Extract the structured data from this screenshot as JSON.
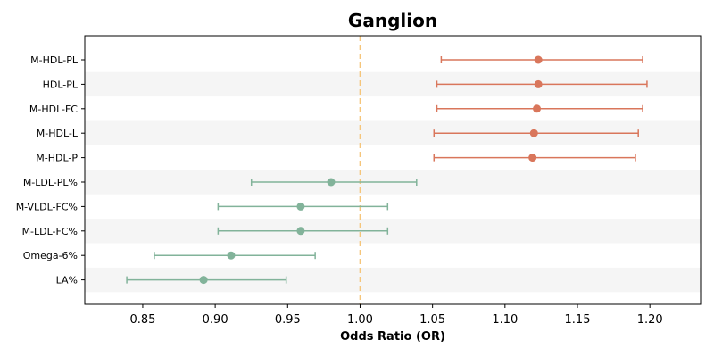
{
  "chart_data": {
    "type": "forest",
    "title": "Ganglion",
    "xlabel": "Odds Ratio (OR)",
    "xlim": [
      0.81,
      1.235
    ],
    "xticks": [
      0.85,
      0.9,
      0.95,
      1.0,
      1.05,
      1.1,
      1.15,
      1.2
    ],
    "xtick_labels": [
      "0.85",
      "0.90",
      "0.95",
      "1.00",
      "1.05",
      "1.10",
      "1.15",
      "1.20"
    ],
    "reference_line": 1.0,
    "alternating_row_shading": true,
    "colors": {
      "positive": "#d9765b",
      "negative": "#82b39a",
      "reference": "#f5c57a",
      "shade": "#f5f5f5"
    },
    "rows": [
      {
        "label": "M-HDL-PL",
        "or": 1.123,
        "lower": 1.056,
        "upper": 1.195,
        "group": "positive"
      },
      {
        "label": "HDL-PL",
        "or": 1.123,
        "lower": 1.053,
        "upper": 1.198,
        "group": "positive"
      },
      {
        "label": "M-HDL-FC",
        "or": 1.122,
        "lower": 1.053,
        "upper": 1.195,
        "group": "positive"
      },
      {
        "label": "M-HDL-L",
        "or": 1.12,
        "lower": 1.051,
        "upper": 1.192,
        "group": "positive"
      },
      {
        "label": "M-HDL-P",
        "or": 1.119,
        "lower": 1.051,
        "upper": 1.19,
        "group": "positive"
      },
      {
        "label": "M-LDL-PL%",
        "or": 0.98,
        "lower": 0.925,
        "upper": 1.039,
        "group": "negative"
      },
      {
        "label": "M-VLDL-FC%",
        "or": 0.959,
        "lower": 0.902,
        "upper": 1.019,
        "group": "negative"
      },
      {
        "label": "M-LDL-FC%",
        "or": 0.959,
        "lower": 0.902,
        "upper": 1.019,
        "group": "negative"
      },
      {
        "label": "Omega-6%",
        "or": 0.911,
        "lower": 0.858,
        "upper": 0.969,
        "group": "negative"
      },
      {
        "label": "LA%",
        "or": 0.892,
        "lower": 0.839,
        "upper": 0.949,
        "group": "negative"
      }
    ]
  }
}
